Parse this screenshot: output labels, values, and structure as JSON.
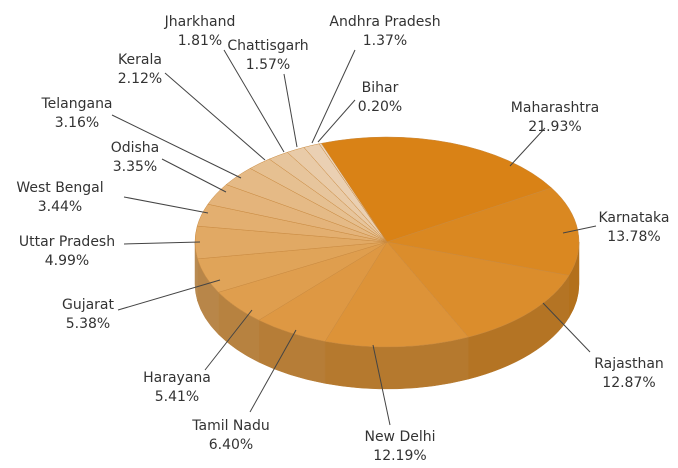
{
  "chart_data": {
    "type": "pie3d",
    "categories": [
      "Maharashtra",
      "Karnataka",
      "Rajasthan",
      "New Delhi",
      "Tamil Nadu",
      "Harayana",
      "Gujarat",
      "Uttar Pradesh",
      "West Bengal",
      "Odisha",
      "Telangana",
      "Kerala",
      "Jharkhand",
      "Chattisgarh",
      "Andhra Pradesh",
      "Bihar"
    ],
    "values": [
      21.93,
      13.78,
      12.87,
      12.19,
      6.4,
      5.41,
      5.38,
      4.99,
      3.44,
      3.35,
      3.16,
      2.12,
      1.81,
      1.57,
      1.37,
      0.2
    ],
    "value_labels": [
      "21.93%",
      "13.78%",
      "12.87%",
      "12.19%",
      "6.40%",
      "5.41%",
      "5.38%",
      "4.99%",
      "3.44%",
      "3.35%",
      "3.16%",
      "2.12%",
      "1.81%",
      "1.57%",
      "1.37%",
      "0.20%"
    ],
    "colors": [
      "#d98216",
      "#da8821",
      "#db8d2c",
      "#dd9338",
      "#de9843",
      "#df9e4e",
      "#e0a459",
      "#e1a964",
      "#e3af70",
      "#e4b47b",
      "#e5ba86",
      "#e6c091",
      "#e7c59c",
      "#e9cba8",
      "#ead0b3",
      "#ebd6be"
    ]
  }
}
